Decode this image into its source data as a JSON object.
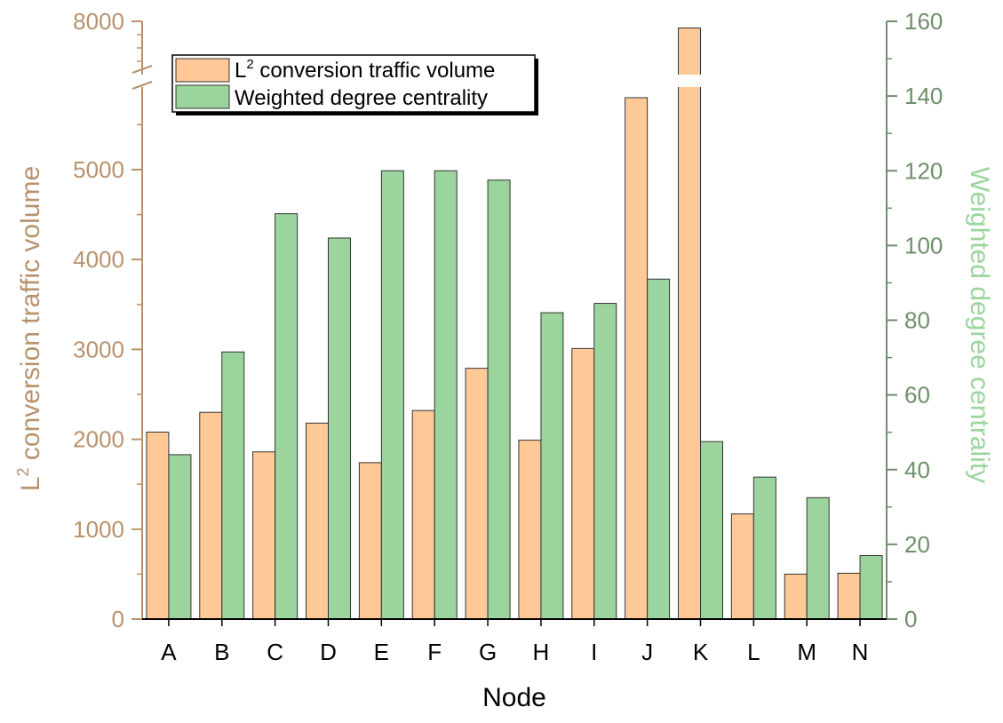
{
  "chart_data": {
    "type": "bar",
    "categories": [
      "A",
      "B",
      "C",
      "D",
      "E",
      "F",
      "G",
      "H",
      "I",
      "J",
      "K",
      "L",
      "M",
      "N"
    ],
    "xlabel": "Node",
    "ylabel_left": {
      "prefix": "L",
      "sup": "2",
      "rest": " conversion  traffic volume"
    },
    "ylabel_right": "Weighted degree centrality",
    "left_axis": {
      "lower_range": [
        0,
        5800
      ],
      "upper_range": [
        7200,
        8000
      ],
      "broken": true,
      "ticks_lower": [
        0,
        1000,
        2000,
        3000,
        4000,
        5000
      ],
      "ticks_upper": [
        8000
      ]
    },
    "right_axis": {
      "range": [
        0,
        160
      ],
      "ticks": [
        0,
        20,
        40,
        60,
        80,
        100,
        120,
        140,
        160
      ]
    },
    "series": [
      {
        "name_prefix": "L",
        "name_sup": "2",
        "name_rest": " conversion traffic volume",
        "axis": "left",
        "color": "#FFC897",
        "values": [
          2080,
          2300,
          1860,
          2180,
          1740,
          2320,
          2790,
          1990,
          3010,
          5800,
          7900,
          1170,
          500,
          510
        ]
      },
      {
        "name": "Weighted degree centrality",
        "axis": "right",
        "color": "#9BD59D",
        "values": [
          44,
          71.5,
          108.5,
          102,
          120,
          120,
          117.5,
          82,
          84.5,
          91,
          47.5,
          38,
          32.5,
          17
        ]
      }
    ],
    "legend_position": "top-left",
    "grid": false,
    "colors": {
      "left_axis": "#B8926D",
      "right_axis": "#6E8F6A",
      "right_axis_title": "#9BD59D",
      "bar_edge": "#333333"
    }
  }
}
